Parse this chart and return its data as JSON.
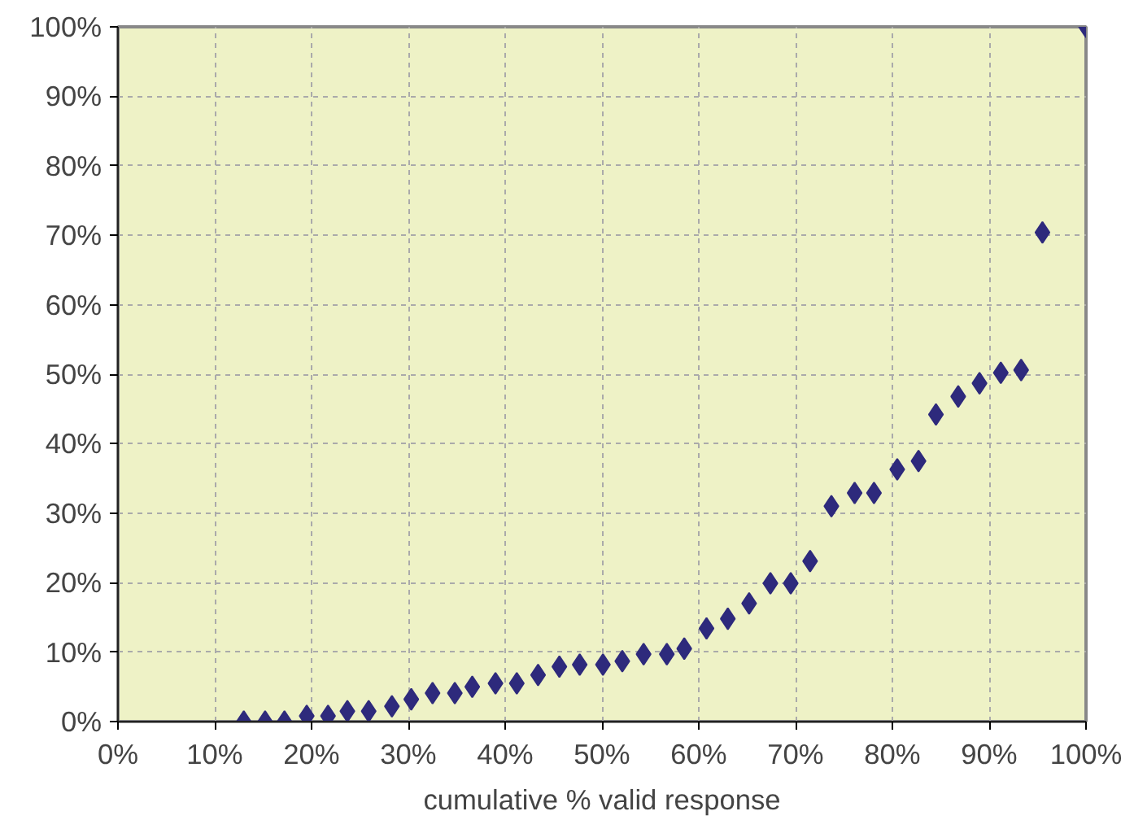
{
  "chart_data": {
    "type": "scatter",
    "xlabel": "cumulative % valid response",
    "x": [
      13.0,
      15.2,
      17.2,
      19.5,
      21.7,
      23.7,
      25.9,
      28.3,
      30.3,
      32.5,
      34.8,
      36.6,
      39.0,
      41.2,
      43.4,
      45.6,
      47.7,
      50.1,
      52.1,
      54.3,
      56.7,
      58.5,
      60.8,
      63.0,
      65.2,
      67.4,
      69.5,
      71.5,
      73.7,
      76.1,
      78.1,
      80.5,
      82.7,
      84.5,
      86.8,
      89.0,
      91.2,
      93.3,
      95.5,
      100
    ],
    "series": [
      {
        "color": "#2e2a7c",
        "values": [
          0,
          0,
          0,
          0.8,
          0.8,
          1.5,
          1.5,
          2.2,
          3.2,
          4.1,
          4.1,
          5.0,
          5.5,
          5.5,
          6.7,
          7.9,
          8.2,
          8.2,
          8.7,
          9.7,
          9.7,
          10.5,
          13.4,
          14.8,
          17.0,
          19.9,
          19.9,
          23.1,
          31.0,
          32.9,
          32.9,
          36.3,
          37.5,
          44.2,
          46.8,
          48.7,
          50.2,
          50.6,
          70.4,
          100
        ]
      }
    ],
    "xlim": [
      0,
      100
    ],
    "ylim": [
      0,
      100
    ],
    "xticks": [
      {
        "value": 0,
        "label": "0%"
      },
      {
        "value": 10,
        "label": "10%"
      },
      {
        "value": 20,
        "label": "20%"
      },
      {
        "value": 30,
        "label": "30%"
      },
      {
        "value": 40,
        "label": "40%"
      },
      {
        "value": 50,
        "label": "50%"
      },
      {
        "value": 60,
        "label": "60%"
      },
      {
        "value": 70,
        "label": "70%"
      },
      {
        "value": 80,
        "label": "80%"
      },
      {
        "value": 90,
        "label": "90%"
      },
      {
        "value": 100,
        "label": "100%"
      }
    ],
    "yticks": [
      {
        "value": 0,
        "label": "0%"
      },
      {
        "value": 10,
        "label": "10%"
      },
      {
        "value": 20,
        "label": "20%"
      },
      {
        "value": 30,
        "label": "30%"
      },
      {
        "value": 40,
        "label": "40%"
      },
      {
        "value": 50,
        "label": "50%"
      },
      {
        "value": 60,
        "label": "60%"
      },
      {
        "value": 70,
        "label": "70%"
      },
      {
        "value": 80,
        "label": "80%"
      },
      {
        "value": 90,
        "label": "90%"
      },
      {
        "value": 100,
        "label": "100%"
      }
    ],
    "grid": true,
    "marker": "diamond"
  }
}
